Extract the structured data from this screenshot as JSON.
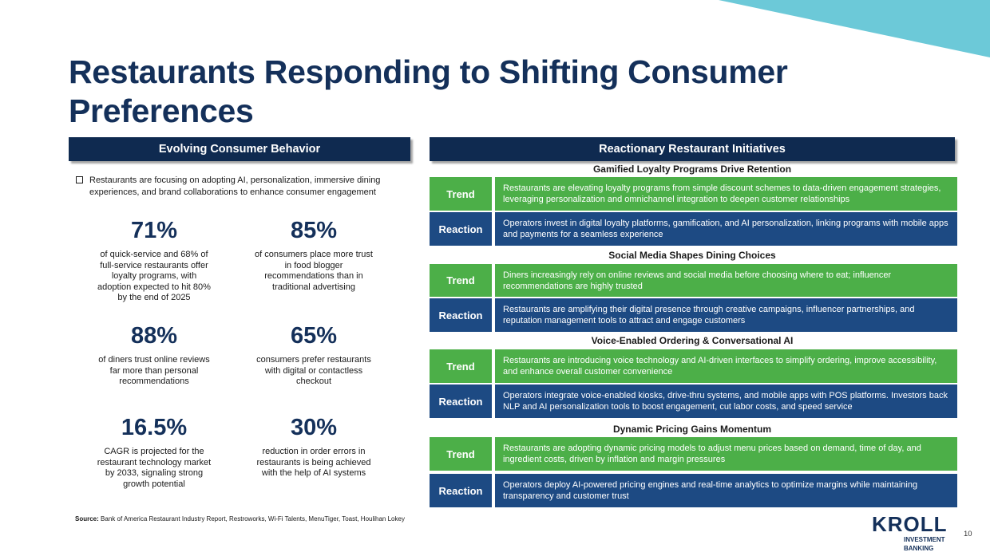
{
  "title": "Restaurants Responding to Shifting Consumer Preferences",
  "left_section": {
    "header": "Evolving Consumer Behavior",
    "bullet": "Restaurants are focusing on adopting AI, personalization, immersive dining experiences, and brand collaborations to enhance consumer engagement",
    "stats": [
      {
        "value": "71%",
        "description": "of quick-service and 68% of full-service restaurants offer loyalty programs, with adoption expected to hit 80% by the end of 2025"
      },
      {
        "value": "85%",
        "description": "of consumers place more trust in food blogger recommendations than in traditional advertising"
      },
      {
        "value": "88%",
        "description": "of diners trust online reviews far more than personal recommendations"
      },
      {
        "value": "65%",
        "description": "consumers prefer restaurants with digital or contactless checkout"
      },
      {
        "value": "16.5%",
        "description": "CAGR is projected for the restaurant technology market by 2033, signaling strong growth potential"
      },
      {
        "value": "30%",
        "description": "reduction in order errors in restaurants is being achieved with the help of AI systems"
      }
    ]
  },
  "right_section": {
    "header": "Reactionary Restaurant Initiatives",
    "trend_label": "Trend",
    "reaction_label": "Reaction",
    "groups": [
      {
        "title": "Gamified Loyalty Programs Drive Retention",
        "trend": "Restaurants are elevating loyalty programs from simple discount schemes to data-driven engagement strategies, leveraging personalization and omnichannel integration to deepen customer relationships",
        "reaction": "Operators invest in digital loyalty platforms, gamification, and AI personalization, linking programs with mobile apps and payments for a seamless experience"
      },
      {
        "title": "Social Media Shapes Dining Choices",
        "trend": "Diners increasingly rely on online reviews and social media before choosing where to eat; influencer recommendations are highly trusted",
        "reaction": "Restaurants are amplifying their digital presence through creative campaigns, influencer partnerships, and reputation management tools to attract and engage customers"
      },
      {
        "title": "Voice-Enabled Ordering & Conversational AI",
        "trend": "Restaurants are introducing voice technology and AI-driven interfaces to simplify ordering, improve accessibility, and enhance overall customer convenience",
        "reaction": "Operators integrate voice-enabled kiosks, drive-thru systems, and mobile apps with POS platforms. Investors back NLP and AI personalization tools to boost engagement, cut labor costs, and speed service"
      },
      {
        "title": "Dynamic Pricing Gains Momentum",
        "trend": "Restaurants are adopting dynamic pricing models to adjust menu prices based on demand, time of day, and ingredient costs, driven by inflation and margin pressures",
        "reaction": "Operators deploy AI-powered pricing engines and real-time analytics to optimize margins while maintaining transparency and customer trust"
      }
    ]
  },
  "footer": {
    "source_label": "Source:",
    "source_text": "Bank of America Restaurant Industry Report, Restroworks, Wi-Fi Talents, MenuTiger, Toast, Houlihan Lokey",
    "logo_word": "KROLL",
    "logo_subtitle_line1": "INVESTMENT",
    "logo_subtitle_line2": "BANKING",
    "page_number": "10"
  },
  "colors": {
    "navy": "#0f2a50",
    "title_navy": "#14305a",
    "trend_green": "#4caf48",
    "reaction_blue": "#1d4a83",
    "accent_teal": "#6cc9d8"
  }
}
